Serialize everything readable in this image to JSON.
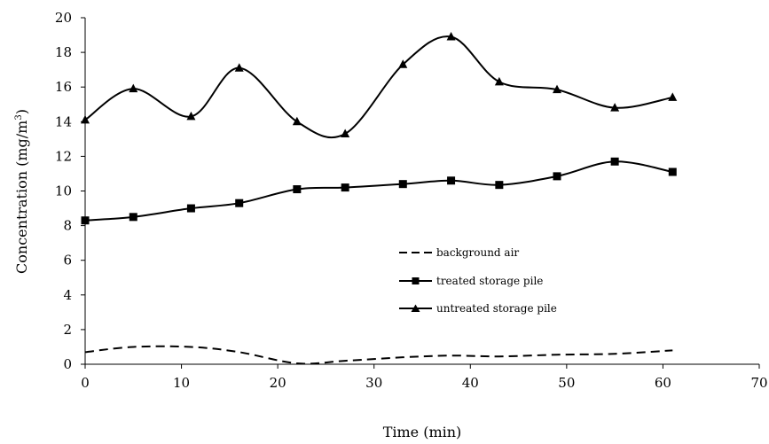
{
  "chart_data": {
    "type": "line",
    "title": "",
    "xlabel": "Time (min)",
    "ylabel_main": "Concentration (mg/m",
    "ylabel_sup": "3",
    "ylabel_close": ")",
    "xlim": [
      0,
      70
    ],
    "ylim": [
      0,
      20
    ],
    "x_ticks": [
      "0",
      "10",
      "20",
      "30",
      "40",
      "50",
      "60",
      "70"
    ],
    "y_ticks": [
      "0",
      "2",
      "4",
      "6",
      "8",
      "10",
      "12",
      "14",
      "16",
      "18",
      "20"
    ],
    "grid": false,
    "legend_position": "center-right",
    "series": [
      {
        "name": "background air",
        "style": "dashed",
        "marker": "none",
        "color": "#000000",
        "x": [
          0,
          5,
          11,
          16,
          22,
          27,
          33,
          38,
          43,
          49,
          55,
          61
        ],
        "y": [
          0.7,
          1.0,
          1.0,
          0.7,
          0.05,
          0.2,
          0.4,
          0.5,
          0.45,
          0.55,
          0.6,
          0.8
        ]
      },
      {
        "name": "treated storage pile",
        "style": "solid",
        "marker": "square",
        "color": "#000000",
        "x": [
          0,
          5,
          11,
          16,
          22,
          27,
          33,
          38,
          43,
          49,
          55,
          61
        ],
        "y": [
          8.3,
          8.5,
          9.0,
          9.3,
          10.1,
          10.2,
          10.4,
          10.6,
          10.35,
          10.85,
          11.7,
          11.1
        ]
      },
      {
        "name": "untreated storage pile",
        "style": "solid",
        "marker": "triangle",
        "color": "#000000",
        "x": [
          0,
          5,
          11,
          16,
          22,
          27,
          33,
          38,
          43,
          49,
          55,
          61
        ],
        "y": [
          14.1,
          15.9,
          14.3,
          17.1,
          14.0,
          13.3,
          17.3,
          18.9,
          16.3,
          15.85,
          14.8,
          15.4
        ]
      }
    ]
  }
}
